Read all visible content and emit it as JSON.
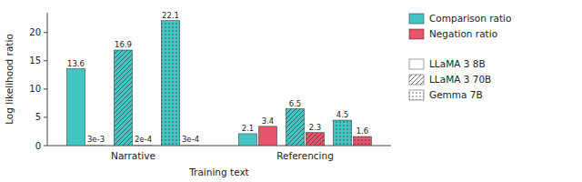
{
  "chart_data": {
    "type": "bar",
    "xlabel": "Training text",
    "ylabel": "Log likelihood ratio",
    "categories": [
      "Narrative",
      "Referencing"
    ],
    "series": [
      {
        "name": "LLaMA 3 8B",
        "ratio": "Comparison ratio",
        "color": "#45C4C4",
        "values": [
          13.6,
          2.1
        ],
        "value_labels": [
          "13.6",
          "2.1"
        ]
      },
      {
        "name": "LLaMA 3 8B",
        "ratio": "Negation ratio",
        "color": "#E8546A",
        "values": [
          0.003,
          3.4
        ],
        "value_labels": [
          "3e-3",
          "3.4"
        ]
      },
      {
        "name": "LLaMA 3 70B",
        "ratio": "Comparison ratio",
        "color": "#45C4C4",
        "values": [
          16.9,
          6.5
        ],
        "value_labels": [
          "16.9",
          "6.5"
        ]
      },
      {
        "name": "LLaMA 3 70B",
        "ratio": "Negation ratio",
        "color": "#E8546A",
        "values": [
          0.0002,
          2.3
        ],
        "value_labels": [
          "2e-4",
          "2.3"
        ]
      },
      {
        "name": "Gemma 7B",
        "ratio": "Comparison ratio",
        "color": "#45C4C4",
        "values": [
          22.1,
          4.5
        ],
        "value_labels": [
          "22.1",
          "4.5"
        ]
      },
      {
        "name": "Gemma 7B",
        "ratio": "Negation ratio",
        "color": "#E8546A",
        "values": [
          0.0003,
          1.6
        ],
        "value_labels": [
          "3e-4",
          "1.6"
        ]
      }
    ],
    "ylim": [
      0,
      23.5
    ],
    "yticks": [
      0,
      5,
      10,
      15,
      20
    ],
    "grid": false,
    "legend": "right",
    "data_labels": true
  }
}
